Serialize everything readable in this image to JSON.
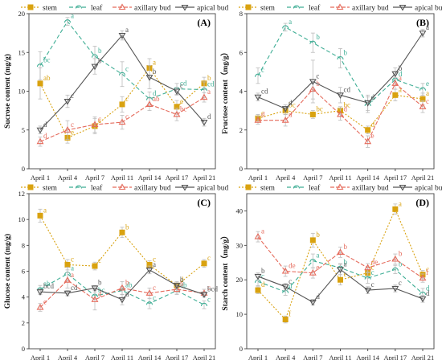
{
  "legend": {
    "stem": "stem",
    "leaf": "leaf",
    "axillary": "axillary bud",
    "apical": "apical bud"
  },
  "colors": {
    "stem": "#d9a20f",
    "leaf": "#3fae95",
    "axillary": "#e56a5b",
    "apical": "#555555"
  },
  "chart_data": [
    {
      "type": "line",
      "panel_label": "(A)",
      "ylabel": "Sucrose content (mg/g)",
      "x": [
        "April 1",
        "April 4",
        "April 7",
        "April 11",
        "April 14",
        "April 17",
        "April 21"
      ],
      "ylim": [
        0,
        20
      ],
      "yticks": [
        0,
        5,
        10,
        15,
        20
      ],
      "series": [
        {
          "key": "stem",
          "name": "stem",
          "values": [
            11.0,
            4.0,
            5.5,
            8.3,
            13.0,
            8.0,
            11.0
          ],
          "errors": [
            2.0,
            0.7,
            1.0,
            1.0,
            1.2,
            0.8,
            0.8
          ],
          "letters": [
            "ab",
            "e",
            "c",
            "c",
            "a",
            "c",
            "b"
          ]
        },
        {
          "key": "leaf",
          "name": "leaf",
          "values": [
            13.3,
            19.0,
            14.5,
            12.2,
            9.0,
            10.3,
            10.2
          ],
          "errors": [
            1.8,
            0.5,
            1.3,
            1.6,
            0.9,
            0.7,
            1.0
          ],
          "letters": [
            "bc",
            "a",
            "b",
            "c",
            "d",
            "cd",
            "cd"
          ]
        },
        {
          "key": "axillary",
          "name": "axillary bud",
          "values": [
            3.5,
            5.0,
            5.7,
            6.0,
            8.3,
            7.0,
            9.2
          ],
          "errors": [
            0.6,
            1.2,
            1.0,
            0.9,
            0.8,
            0.8,
            0.6
          ],
          "letters": [
            "d",
            "c",
            "c",
            "c",
            "ab",
            "bc",
            "a"
          ]
        },
        {
          "key": "apical",
          "name": "apical bud",
          "values": [
            5.0,
            8.7,
            13.2,
            17.2,
            11.8,
            10.0,
            6.0
          ],
          "errors": [
            0.5,
            0.8,
            1.0,
            0.6,
            1.5,
            0.5,
            0.5
          ],
          "letters": [
            "d",
            "c",
            "b",
            "a",
            "b",
            "c",
            "d"
          ]
        }
      ]
    },
    {
      "type": "line",
      "panel_label": "(B)",
      "ylabel": "Fructose content（mg/g）",
      "x": [
        "April 1",
        "April 4",
        "April 7",
        "April 11",
        "April 14",
        "April 17",
        "April 21"
      ],
      "ylim": [
        0,
        8
      ],
      "yticks": [
        0,
        2,
        4,
        6,
        8
      ],
      "series": [
        {
          "key": "stem",
          "name": "stem",
          "values": [
            2.6,
            3.0,
            2.8,
            3.0,
            2.0,
            3.8,
            3.6
          ],
          "errors": [
            0.2,
            0.2,
            0.2,
            0.2,
            0.2,
            0.3,
            0.3
          ],
          "letters": [
            "c",
            "bc",
            "bc",
            "bc",
            "d",
            "a",
            "a"
          ]
        },
        {
          "key": "leaf",
          "name": "leaf",
          "values": [
            4.8,
            7.3,
            6.5,
            5.7,
            3.3,
            4.6,
            4.1
          ],
          "errors": [
            0.4,
            0.2,
            0.5,
            0.5,
            0.4,
            0.3,
            0.3
          ],
          "letters": [
            "c",
            "a",
            "b",
            "b",
            "f",
            "d",
            "e"
          ]
        },
        {
          "key": "axillary",
          "name": "axillary bud",
          "values": [
            2.5,
            2.5,
            4.1,
            2.8,
            1.4,
            4.4,
            3.2
          ],
          "errors": [
            0.2,
            0.3,
            0.5,
            0.3,
            0.3,
            0.3,
            0.3
          ],
          "letters": [
            "d",
            "d",
            "b",
            "d",
            "e",
            "a",
            "c"
          ]
        },
        {
          "key": "apical",
          "name": "apical bud",
          "values": [
            3.7,
            3.1,
            4.5,
            3.8,
            3.4,
            4.9,
            7.0
          ],
          "errors": [
            0.2,
            0.2,
            1.1,
            0.4,
            0.4,
            0.3,
            0.2
          ],
          "letters": [
            "cd",
            "d",
            "c",
            "cd",
            "d",
            "b",
            "a"
          ]
        }
      ]
    },
    {
      "type": "line",
      "panel_label": "(C)",
      "ylabel": "Glucose content (mg/g)",
      "x": [
        "April 1",
        "April 4",
        "April 7",
        "April 11",
        "April 14",
        "April 17",
        "April 21"
      ],
      "ylim": [
        0,
        12
      ],
      "yticks": [
        0,
        2,
        4,
        6,
        8,
        10,
        12
      ],
      "series": [
        {
          "key": "stem",
          "name": "stem",
          "values": [
            10.3,
            6.5,
            6.4,
            9.0,
            6.5,
            4.9,
            6.6
          ],
          "errors": [
            0.5,
            0.4,
            0.3,
            0.4,
            0.3,
            0.3,
            0.3
          ],
          "letters": [
            "a",
            "c",
            "c",
            "b",
            "c",
            "d",
            "c"
          ]
        },
        {
          "key": "leaf",
          "name": "leaf",
          "values": [
            4.6,
            5.8,
            4.1,
            4.5,
            3.5,
            4.5,
            3.4
          ],
          "errors": [
            0.3,
            0.5,
            0.3,
            0.3,
            0.4,
            0.3,
            0.3
          ],
          "letters": [
            "ab",
            "a",
            "bc",
            "ab",
            "c",
            "ab",
            "c"
          ]
        },
        {
          "key": "axillary",
          "name": "axillary bud",
          "values": [
            3.2,
            5.3,
            3.8,
            4.7,
            4.3,
            4.6,
            4.3
          ],
          "errors": [
            0.3,
            0.6,
            0.8,
            0.5,
            0.4,
            0.3,
            0.3
          ],
          "letters": [
            "e",
            "a",
            "d",
            "b",
            "c",
            "b",
            "c"
          ]
        },
        {
          "key": "apical",
          "name": "apical bud",
          "values": [
            4.4,
            4.3,
            4.7,
            3.8,
            6.1,
            4.9,
            4.2
          ],
          "errors": [
            0.2,
            0.2,
            0.2,
            0.4,
            0.3,
            0.2,
            0.2
          ],
          "letters": [
            "bcd",
            "cd",
            "b",
            "d",
            "a",
            "b",
            "bcd"
          ]
        }
      ]
    },
    {
      "type": "line",
      "panel_label": "(D)",
      "ylabel": "Starch content（mg/g）",
      "x": [
        "April 1",
        "April 4",
        "April 7",
        "April 11",
        "April 14",
        "April 17",
        "April 21"
      ],
      "ylim": [
        0,
        45
      ],
      "yticks": [
        0,
        10,
        20,
        30,
        40
      ],
      "series": [
        {
          "key": "stem",
          "name": "stem",
          "values": [
            17.0,
            8.5,
            31.5,
            20.0,
            22.0,
            40.5,
            21.5
          ],
          "errors": [
            1.0,
            1.0,
            2.0,
            1.5,
            1.5,
            1.5,
            1.2
          ],
          "letters": [
            "d",
            "f",
            "b",
            "e",
            "c",
            "a",
            "c"
          ]
        },
        {
          "key": "leaf",
          "name": "leaf",
          "values": [
            19.5,
            16.5,
            25.5,
            23.5,
            20.5,
            23.0,
            16.0
          ],
          "errors": [
            1.2,
            1.0,
            2.0,
            1.2,
            1.5,
            1.2,
            1.5
          ],
          "letters": [
            "c",
            "d",
            "a",
            "b",
            "c",
            "b",
            "d"
          ]
        },
        {
          "key": "axillary",
          "name": "axillary bud",
          "values": [
            32.5,
            22.5,
            22.0,
            28.0,
            23.5,
            26.0,
            20.5
          ],
          "errors": [
            1.5,
            1.5,
            1.5,
            1.5,
            1.2,
            1.5,
            1.2
          ],
          "letters": [
            "a",
            "de",
            "e",
            "b",
            "de",
            "b",
            "f"
          ]
        },
        {
          "key": "apical",
          "name": "apical bud",
          "values": [
            21.0,
            18.0,
            13.5,
            23.0,
            17.0,
            17.5,
            14.5
          ],
          "errors": [
            1.0,
            1.0,
            0.8,
            1.5,
            1.0,
            1.0,
            1.0
          ],
          "letters": [
            "b",
            "c",
            "d",
            "a",
            "c",
            "c",
            "d"
          ]
        }
      ]
    }
  ]
}
